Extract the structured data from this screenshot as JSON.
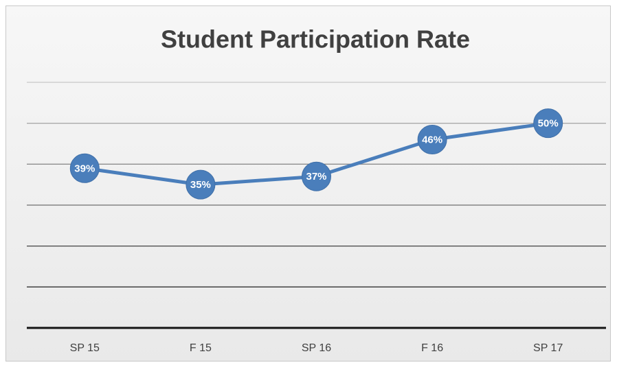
{
  "chart_data": {
    "type": "line",
    "title": "Student Participation Rate",
    "categories": [
      "SP 15",
      "F 15",
      "SP 16",
      "F 16",
      "SP 17"
    ],
    "values": [
      39,
      35,
      37,
      46,
      50
    ],
    "value_labels": [
      "39%",
      "35%",
      "37%",
      "46%",
      "50%"
    ],
    "color": "#4a7ebb",
    "ylim": [
      0,
      60
    ],
    "yticks": [
      0,
      10,
      20,
      30,
      40,
      50,
      60
    ],
    "grid": true
  }
}
